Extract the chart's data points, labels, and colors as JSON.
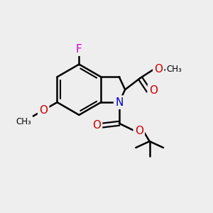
{
  "background_color": "#eeeeee",
  "bond_color": "#000000",
  "atom_colors": {
    "F": "#cc00cc",
    "N": "#0000cc",
    "O": "#cc0000",
    "C": "#000000"
  },
  "figsize": [
    3.0,
    3.0
  ],
  "dpi": 100,
  "xlim": [
    0,
    10
  ],
  "ylim": [
    0,
    10
  ]
}
